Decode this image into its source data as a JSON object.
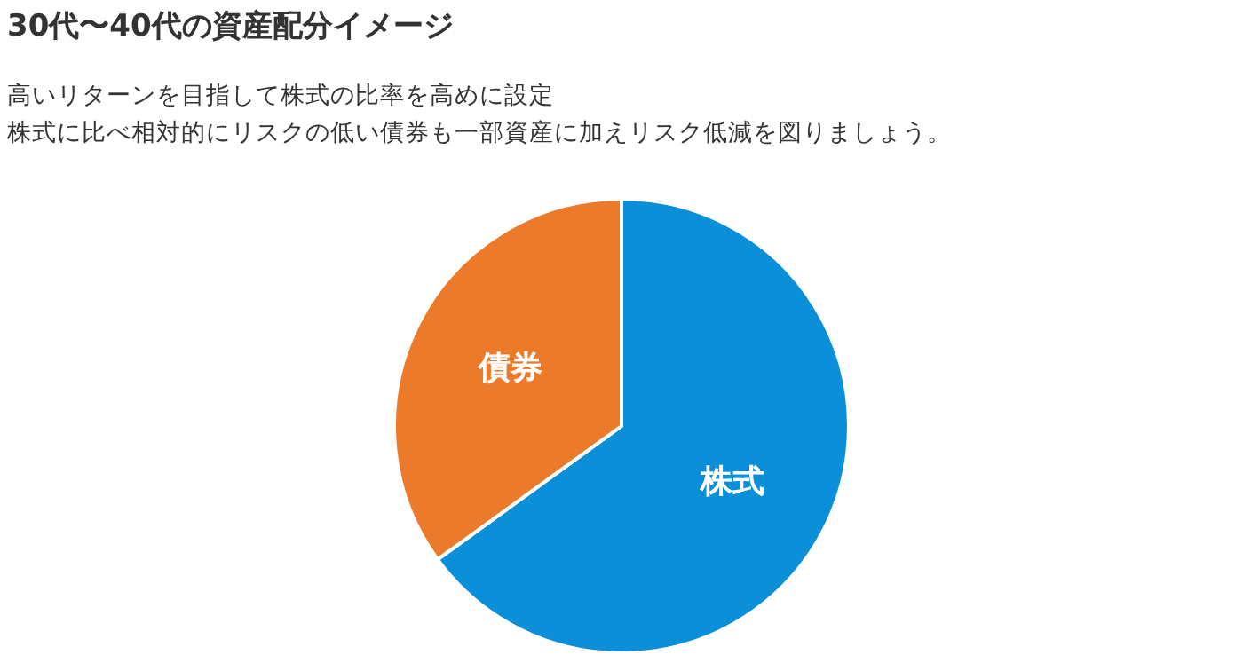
{
  "chart_data": {
    "type": "pie",
    "title": "30代〜40代の資産配分イメージ",
    "subtitle": "高いリターンを目指して株式の比率を高めに設定",
    "annotations": [
      "株式に比べ相対的にリスクの低い債券も一部資産に加えリスク低減を図りましょう。"
    ],
    "categories": [
      "株式",
      "債券"
    ],
    "values": [
      65,
      35
    ],
    "colors": [
      "#0a8fd8",
      "#ec7a2b"
    ]
  }
}
